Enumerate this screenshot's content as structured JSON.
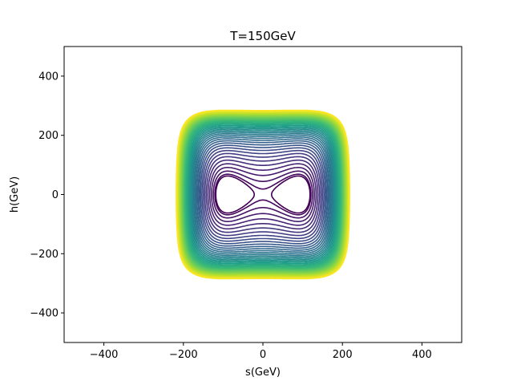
{
  "chart_data": {
    "type": "contour",
    "title": "T=150GeV",
    "xlabel": "s(GeV)",
    "ylabel": "h(GeV)",
    "xlim": [
      -500,
      500
    ],
    "ylim": [
      -500,
      500
    ],
    "xticks": [
      -400,
      -200,
      0,
      200,
      400
    ],
    "yticks": [
      -400,
      -200,
      0,
      200,
      400
    ],
    "xtick_labels": [
      "−400",
      "−200",
      "0",
      "200",
      "400"
    ],
    "ytick_labels": [
      "−400",
      "−200",
      "0",
      "200",
      "400"
    ],
    "grid": false,
    "colormap": "viridis",
    "colormap_stops": [
      "#440154",
      "#482878",
      "#3e4989",
      "#31688e",
      "#26828e",
      "#1f9e89",
      "#35b779",
      "#6ece58",
      "#b5de2b",
      "#fde725"
    ],
    "levels": 40,
    "minima": [
      {
        "s": -118,
        "h": 0
      },
      {
        "s": 118,
        "h": 0
      }
    ],
    "saddle": {
      "s": 0,
      "h": 0
    },
    "outer_contour_extent": {
      "s": [
        -215,
        218
      ],
      "h": [
        -290,
        290
      ]
    }
  }
}
